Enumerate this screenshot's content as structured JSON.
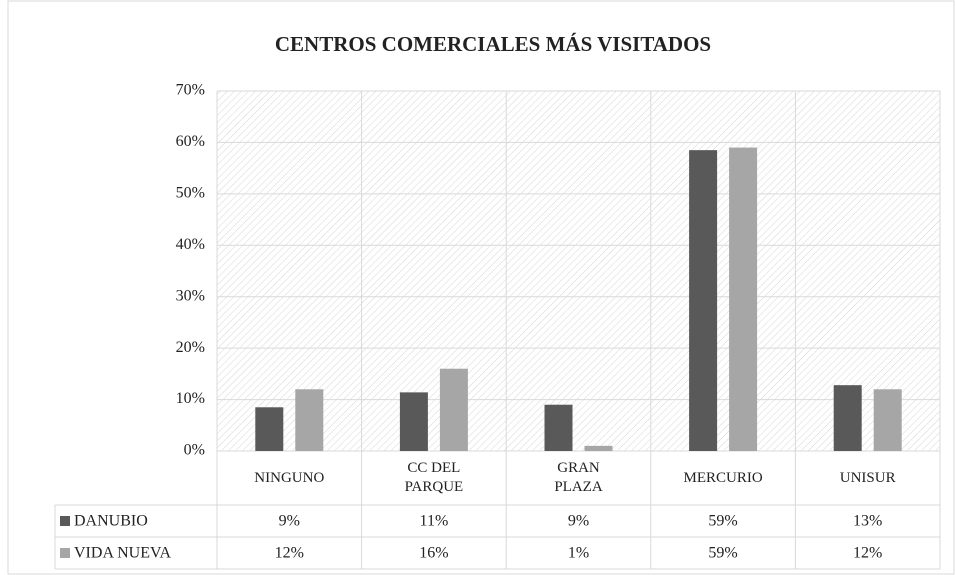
{
  "chart_data": {
    "type": "bar",
    "title": "CENTROS COMERCIALES MÁS VISITADOS",
    "categories": [
      "NINGUNO",
      "CC DEL PARQUE",
      "GRAN PLAZA",
      "MERCURIO",
      "UNISUR"
    ],
    "series": [
      {
        "name": "DANUBIO",
        "color": "#595959",
        "values": [
          8.5,
          11.4,
          9,
          58.5,
          12.8
        ],
        "value_labels": [
          "9%",
          "11%",
          "9%",
          "59%",
          "13%"
        ]
      },
      {
        "name": "VIDA NUEVA",
        "color": "#a6a6a6",
        "values": [
          12,
          16,
          1,
          59,
          12
        ],
        "value_labels": [
          "12%",
          "16%",
          "1%",
          "59%",
          "12%"
        ]
      }
    ],
    "ylim": [
      0,
      70
    ],
    "yticks": [
      {
        "value": 0,
        "label": "0%"
      },
      {
        "value": 10,
        "label": "10%"
      },
      {
        "value": 20,
        "label": "20%"
      },
      {
        "value": 30,
        "label": "30%"
      },
      {
        "value": 40,
        "label": "40%"
      },
      {
        "value": 50,
        "label": "50%"
      },
      {
        "value": 60,
        "label": "60%"
      },
      {
        "value": 70,
        "label": "70%"
      }
    ],
    "grid": true
  }
}
